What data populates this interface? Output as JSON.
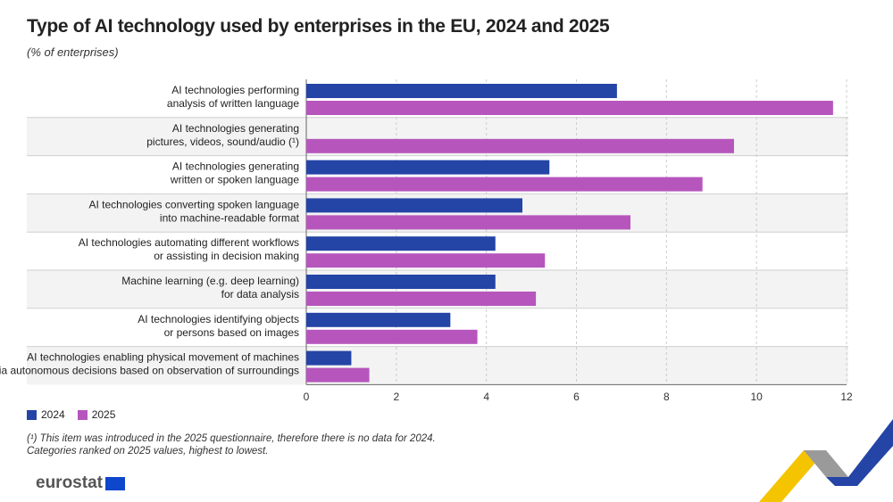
{
  "title": "Type of AI technology used by enterprises in the EU, 2024 and 2025",
  "subtitle": "(% of enterprises)",
  "chart_data": {
    "type": "bar",
    "orientation": "horizontal",
    "categories": [
      [
        "AI technologies performing",
        "analysis of written language"
      ],
      [
        "AI technologies generating",
        "pictures, videos, sound/audio (¹)"
      ],
      [
        "AI technologies generating",
        "written or spoken language"
      ],
      [
        "AI technologies converting spoken language",
        "into machine-readable format"
      ],
      [
        "AI technologies automating different workflows",
        "or assisting in decision making"
      ],
      [
        "Machine learning (e.g. deep learning)",
        "for data analysis"
      ],
      [
        "AI technologies identifying objects",
        "or persons based on images"
      ],
      [
        "AI technologies enabling physical movement of machines",
        "via autonomous decisions based on observation of surroundings"
      ]
    ],
    "series": [
      {
        "name": "2024",
        "color": "#2444a6",
        "values": [
          6.9,
          null,
          5.4,
          4.8,
          4.2,
          4.2,
          3.2,
          1.0
        ]
      },
      {
        "name": "2025",
        "color": "#b656bd",
        "values": [
          11.7,
          9.5,
          8.8,
          7.2,
          5.3,
          5.1,
          3.8,
          1.4
        ]
      }
    ],
    "xlim": [
      0,
      12
    ],
    "xticks": [
      "0",
      "2",
      "4",
      "6",
      "8",
      "10",
      "12"
    ],
    "grid": true,
    "legend": "bottom-left"
  },
  "notes": [
    "(¹) This item was introduced in the 2025 questionnaire, therefore there is no data for 2024.",
    "Categories ranked on 2025 values, highest to lowest."
  ],
  "logo": "eurostat"
}
